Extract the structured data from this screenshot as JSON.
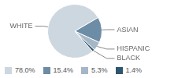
{
  "chart_data": {
    "type": "pie",
    "categories": [
      "WHITE",
      "ASIAN",
      "HISPANIC",
      "BLACK"
    ],
    "values": [
      78.0,
      15.4,
      5.3,
      1.4
    ],
    "value_labels": [
      "78.0%",
      "15.4%",
      "5.3%",
      "1.4%"
    ],
    "colors": [
      "#cdd7e0",
      "#6d8ca5",
      "#a5b7c7",
      "#2f566e"
    ],
    "legend": "bottom"
  }
}
